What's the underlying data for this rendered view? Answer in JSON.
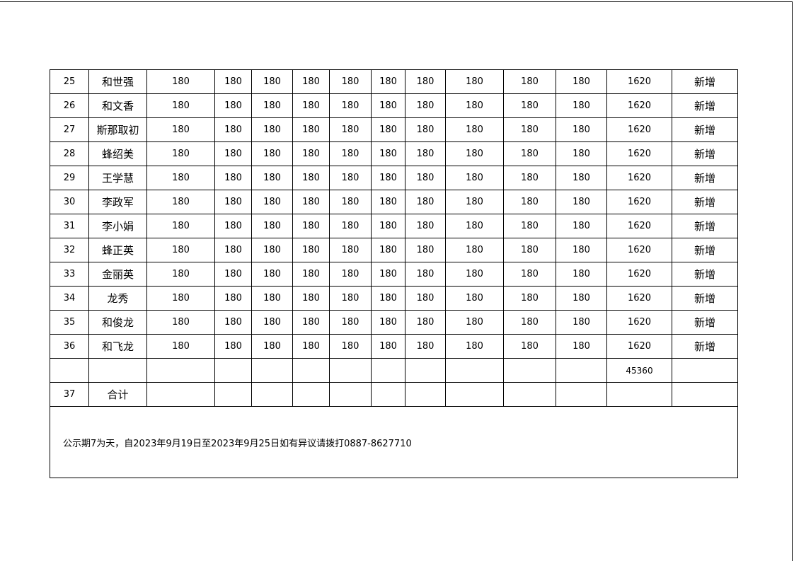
{
  "rows": [
    {
      "no": "25",
      "name": "和世强",
      "values": [
        "180",
        "180",
        "180",
        "180",
        "180",
        "180",
        "180",
        "180",
        "180",
        "180"
      ],
      "total": "1620",
      "status": "新增"
    },
    {
      "no": "26",
      "name": "和文香",
      "values": [
        "180",
        "180",
        "180",
        "180",
        "180",
        "180",
        "180",
        "180",
        "180",
        "180"
      ],
      "total": "1620",
      "status": "新增"
    },
    {
      "no": "27",
      "name": "斯那取初",
      "values": [
        "180",
        "180",
        "180",
        "180",
        "180",
        "180",
        "180",
        "180",
        "180",
        "180"
      ],
      "total": "1620",
      "status": "新增"
    },
    {
      "no": "28",
      "name": "蜂绍美",
      "values": [
        "180",
        "180",
        "180",
        "180",
        "180",
        "180",
        "180",
        "180",
        "180",
        "180"
      ],
      "total": "1620",
      "status": "新增"
    },
    {
      "no": "29",
      "name": "王学慧",
      "values": [
        "180",
        "180",
        "180",
        "180",
        "180",
        "180",
        "180",
        "180",
        "180",
        "180"
      ],
      "total": "1620",
      "status": "新增"
    },
    {
      "no": "30",
      "name": "李政军",
      "values": [
        "180",
        "180",
        "180",
        "180",
        "180",
        "180",
        "180",
        "180",
        "180",
        "180"
      ],
      "total": "1620",
      "status": "新增"
    },
    {
      "no": "31",
      "name": "李小娟",
      "values": [
        "180",
        "180",
        "180",
        "180",
        "180",
        "180",
        "180",
        "180",
        "180",
        "180"
      ],
      "total": "1620",
      "status": "新增"
    },
    {
      "no": "32",
      "name": "蜂正英",
      "values": [
        "180",
        "180",
        "180",
        "180",
        "180",
        "180",
        "180",
        "180",
        "180",
        "180"
      ],
      "total": "1620",
      "status": "新增"
    },
    {
      "no": "33",
      "name": "金丽英",
      "values": [
        "180",
        "180",
        "180",
        "180",
        "180",
        "180",
        "180",
        "180",
        "180",
        "180"
      ],
      "total": "1620",
      "status": "新增"
    },
    {
      "no": "34",
      "name": "龙秀",
      "values": [
        "180",
        "180",
        "180",
        "180",
        "180",
        "180",
        "180",
        "180",
        "180",
        "180"
      ],
      "total": "1620",
      "status": "新增"
    },
    {
      "no": "35",
      "name": "和俊龙",
      "values": [
        "180",
        "180",
        "180",
        "180",
        "180",
        "180",
        "180",
        "180",
        "180",
        "180"
      ],
      "total": "1620",
      "status": "新增"
    },
    {
      "no": "36",
      "name": "和飞龙",
      "values": [
        "180",
        "180",
        "180",
        "180",
        "180",
        "180",
        "180",
        "180",
        "180",
        "180"
      ],
      "total": "1620",
      "status": "新增"
    }
  ],
  "grand_total": "45360",
  "summary_row": {
    "no": "37",
    "label": "合计"
  },
  "notice": "公示期7为天，自2023年9月19日至2023年9月25日如有异议请拨打0887-8627710"
}
